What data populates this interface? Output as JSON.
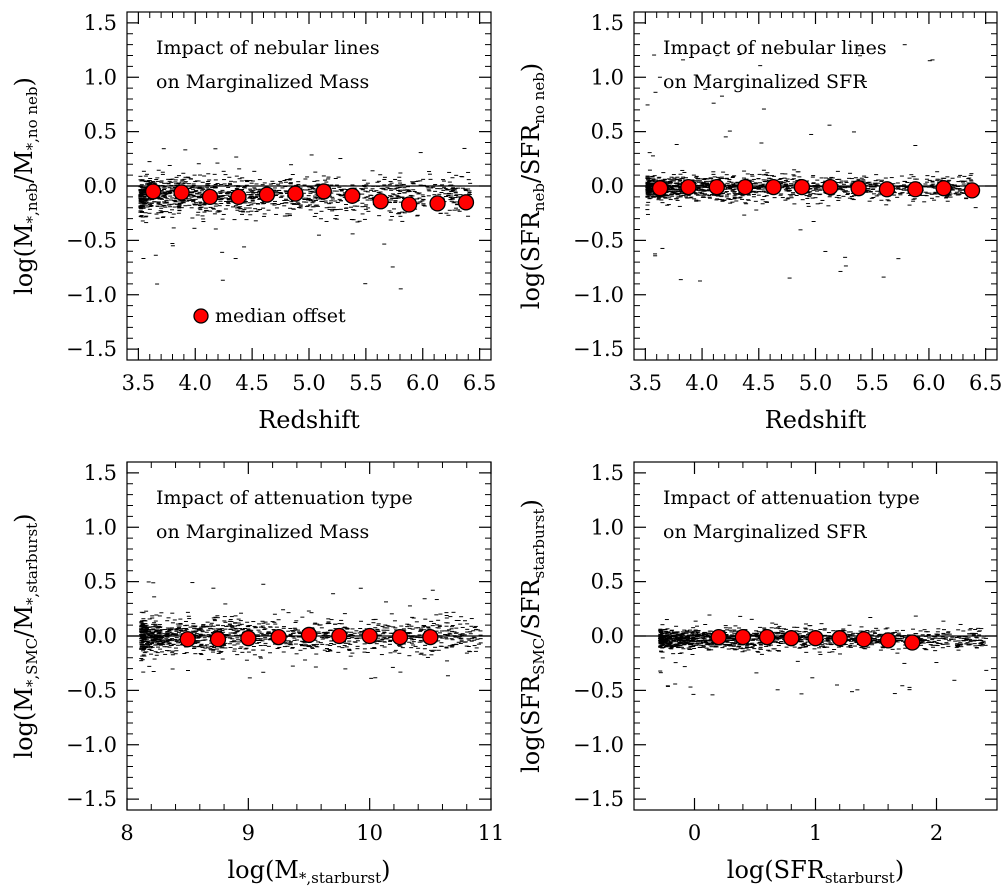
{
  "colors": {
    "marker_fill": "#ff0000",
    "marker_edge": "#000000",
    "scatter": "#000000",
    "reference_line": "#000000",
    "background": "#ffffff"
  },
  "legend": {
    "label": "median offset",
    "placement": "bottom-left",
    "panel": 0
  },
  "chart_data": [
    {
      "type": "scatter",
      "title": "",
      "annotation": [
        "Impact of nebular lines",
        "on Marginalized Mass"
      ],
      "xlabel": "Redshift",
      "ylabel": {
        "prefix": "log(M",
        "sub1": "*,neb",
        "mid": "/M",
        "sub2": "*,no neb",
        "suffix": ")"
      },
      "xlim": [
        3.4,
        6.6
      ],
      "ylim": [
        -1.6,
        1.6
      ],
      "xticks": [
        3.5,
        4.0,
        4.5,
        5.0,
        5.5,
        6.0,
        6.5
      ],
      "xtick_labels": [
        "3.5",
        "4.0",
        "4.5",
        "5.0",
        "5.5",
        "6.0",
        "6.5"
      ],
      "yticks": [
        -1.5,
        -1.0,
        -0.5,
        0.0,
        0.5,
        1.0,
        1.5
      ],
      "ytick_labels": [
        "−1.5",
        "−1.0",
        "−0.5",
        "0.0",
        "0.5",
        "1.0",
        "1.5"
      ],
      "reference_line_y": 0.0,
      "series": [
        {
          "name": "median offset",
          "x": [
            3.63,
            3.88,
            4.13,
            4.38,
            4.63,
            4.88,
            5.13,
            5.38,
            5.63,
            5.88,
            6.13,
            6.38
          ],
          "y": [
            -0.05,
            -0.06,
            -0.1,
            -0.1,
            -0.08,
            -0.07,
            -0.05,
            -0.09,
            -0.14,
            -0.17,
            -0.16,
            -0.15
          ]
        }
      ],
      "scatter_cloud": {
        "x_range": [
          3.5,
          6.4
        ],
        "y_center": -0.09,
        "y_spread": 0.09,
        "y_extremes": [
          -0.95,
          0.4
        ]
      }
    },
    {
      "type": "scatter",
      "title": "",
      "annotation": [
        "Impact of nebular lines",
        "on Marginalized SFR"
      ],
      "xlabel": "Redshift",
      "ylabel": {
        "prefix": "log(SFR",
        "sub1": "neb",
        "mid": "/SFR",
        "sub2": "no neb",
        "suffix": ")"
      },
      "xlim": [
        3.4,
        6.6
      ],
      "ylim": [
        -1.6,
        1.6
      ],
      "xticks": [
        3.5,
        4.0,
        4.5,
        5.0,
        5.5,
        6.0,
        6.5
      ],
      "xtick_labels": [
        "3.5",
        "4.0",
        "4.5",
        "5.0",
        "5.5",
        "6.0",
        "6.5"
      ],
      "yticks": [
        -1.5,
        -1.0,
        -0.5,
        0.0,
        0.5,
        1.0,
        1.5
      ],
      "ytick_labels": [
        "−1.5",
        "−1.0",
        "−0.5",
        "0.0",
        "0.5",
        "1.0",
        "1.5"
      ],
      "reference_line_y": 0.0,
      "series": [
        {
          "name": "median offset",
          "x": [
            3.63,
            3.88,
            4.13,
            4.38,
            4.63,
            4.88,
            5.13,
            5.38,
            5.63,
            5.88,
            6.13,
            6.38
          ],
          "y": [
            -0.02,
            -0.01,
            -0.01,
            -0.01,
            -0.01,
            -0.01,
            -0.01,
            -0.02,
            -0.03,
            -0.03,
            -0.02,
            -0.04
          ]
        }
      ],
      "scatter_cloud": {
        "x_range": [
          3.5,
          6.4
        ],
        "y_center": -0.02,
        "y_spread": 0.06,
        "y_extremes": [
          -0.9,
          1.35
        ]
      }
    },
    {
      "type": "scatter",
      "title": "",
      "annotation": [
        "Impact of attenuation type",
        "on Marginalized Mass"
      ],
      "xlabel": {
        "prefix": "log(M",
        "sub": "*,starburst",
        "suffix": ")"
      },
      "ylabel": {
        "prefix": "log(M",
        "sub1": "*,SMC",
        "mid": "/M",
        "sub2": "*,starburst",
        "suffix": ")"
      },
      "xlim": [
        8.0,
        11.0
      ],
      "ylim": [
        -1.6,
        1.6
      ],
      "xticks": [
        8,
        9,
        10,
        11
      ],
      "xtick_labels": [
        "8",
        "9",
        "10",
        "11"
      ],
      "yticks": [
        -1.5,
        -1.0,
        -0.5,
        0.0,
        0.5,
        1.0,
        1.5
      ],
      "ytick_labels": [
        "−1.5",
        "−1.0",
        "−0.5",
        "0.0",
        "0.5",
        "1.0",
        "1.5"
      ],
      "reference_line_y": 0.0,
      "series": [
        {
          "name": "median offset",
          "x": [
            8.5,
            8.75,
            9.0,
            9.25,
            9.5,
            9.75,
            10.0,
            10.25,
            10.5
          ],
          "y": [
            -0.03,
            -0.03,
            -0.02,
            -0.01,
            0.01,
            0.0,
            0.0,
            -0.01,
            -0.01
          ]
        }
      ],
      "scatter_cloud": {
        "x_range": [
          8.1,
          10.9
        ],
        "y_center": 0.0,
        "y_spread": 0.08,
        "y_extremes": [
          -0.4,
          0.5
        ]
      }
    },
    {
      "type": "scatter",
      "title": "",
      "annotation": [
        "Impact of attenuation type",
        "on Marginalized SFR"
      ],
      "xlabel": {
        "prefix": "log(SFR",
        "sub": "starburst",
        "suffix": ")"
      },
      "ylabel": {
        "prefix": "log(SFR",
        "sub1": "SMC",
        "mid": "/SFR",
        "sub2": "starburst",
        "suffix": ")"
      },
      "xlim": [
        -0.5,
        2.5
      ],
      "ylim": [
        -1.6,
        1.6
      ],
      "xticks": [
        0,
        1,
        2
      ],
      "xtick_labels": [
        "0",
        "1",
        "2"
      ],
      "yticks": [
        -1.5,
        -1.0,
        -0.5,
        0.0,
        0.5,
        1.0,
        1.5
      ],
      "ytick_labels": [
        "−1.5",
        "−1.0",
        "−0.5",
        "0.0",
        "0.5",
        "1.0",
        "1.5"
      ],
      "reference_line_y": 0.0,
      "series": [
        {
          "name": "median offset",
          "x": [
            0.2,
            0.4,
            0.6,
            0.8,
            1.0,
            1.2,
            1.4,
            1.6,
            1.8
          ],
          "y": [
            -0.01,
            -0.01,
            -0.01,
            -0.02,
            -0.02,
            -0.02,
            -0.03,
            -0.04,
            -0.06
          ]
        }
      ],
      "scatter_cloud": {
        "x_range": [
          -0.3,
          2.4
        ],
        "y_center": -0.03,
        "y_spread": 0.05,
        "y_extremes": [
          -0.55,
          0.2
        ]
      }
    }
  ]
}
